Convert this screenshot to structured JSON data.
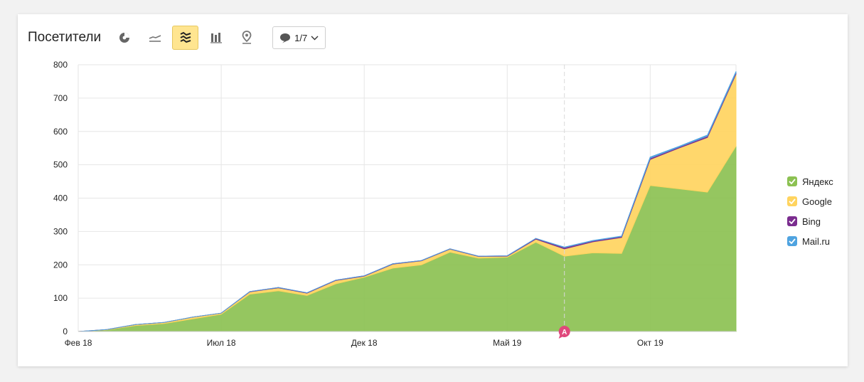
{
  "header": {
    "title": "Посетители",
    "annotations_label": "1/7",
    "tools": [
      {
        "name": "pie-chart-icon"
      },
      {
        "name": "line-chart-icon"
      },
      {
        "name": "stacked-area-icon",
        "active": true
      },
      {
        "name": "stacked-bar-icon"
      },
      {
        "name": "map-icon"
      }
    ]
  },
  "annotation_marker": "A",
  "chart_data": {
    "type": "area",
    "stacked": true,
    "x": [
      0,
      1,
      2,
      3,
      4,
      5,
      6,
      7,
      8,
      9,
      10,
      11,
      12,
      13,
      14,
      15,
      16,
      17,
      18,
      19,
      20,
      21,
      22,
      23
    ],
    "x_tick_labels": [
      {
        "x": 0,
        "label": "Фев 18"
      },
      {
        "x": 5,
        "label": "Июл 18"
      },
      {
        "x": 10,
        "label": "Дек 18"
      },
      {
        "x": 15,
        "label": "Май 19"
      },
      {
        "x": 20,
        "label": "Окт 19"
      }
    ],
    "ylim": [
      0,
      800
    ],
    "yticks": [
      0,
      100,
      200,
      300,
      400,
      500,
      600,
      700,
      800
    ],
    "grid": true,
    "legend_position": "right",
    "dashed_marker_x": 17,
    "series": [
      {
        "name": "Яндекс",
        "color": "#8cc152",
        "values": [
          0,
          5,
          18,
          24,
          38,
          52,
          112,
          122,
          108,
          143,
          163,
          190,
          200,
          238,
          220,
          223,
          268,
          226,
          236,
          234,
          438,
          428,
          418,
          556
        ]
      },
      {
        "name": "Google",
        "color": "#ffd45f",
        "values": [
          0,
          1,
          3,
          3,
          5,
          3,
          7,
          9,
          7,
          10,
          3,
          12,
          12,
          9,
          5,
          3,
          9,
          22,
          33,
          48,
          78,
          122,
          164,
          216
        ]
      },
      {
        "name": "Bing",
        "color": "#7b2d8f",
        "values": [
          0,
          0,
          0,
          0,
          0,
          0,
          1,
          1,
          1,
          1,
          1,
          1,
          1,
          1,
          1,
          1,
          2,
          4,
          3,
          3,
          4,
          3,
          4,
          4
        ]
      },
      {
        "name": "Mail.ru",
        "color": "#4fa3e0",
        "values": [
          0,
          0,
          0,
          0,
          0,
          0,
          0,
          0,
          0,
          0,
          0,
          0,
          0,
          0,
          0,
          0,
          0,
          1,
          1,
          1,
          3,
          2,
          3,
          4
        ]
      }
    ]
  }
}
